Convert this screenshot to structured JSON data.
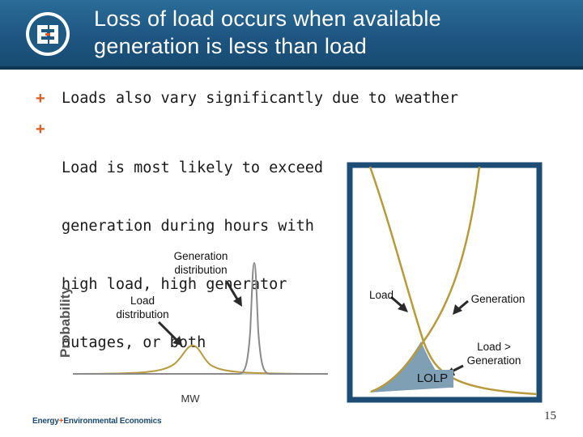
{
  "header": {
    "title_line1": "Loss of load occurs when available",
    "title_line2": "generation is less than load",
    "logo_icon": "e3-logo"
  },
  "bullets": [
    "Loads also vary significantly due to weather",
    [
      "Load is most likely to exceed",
      "generation during hours with",
      "high load, high generator",
      "outages, or both"
    ]
  ],
  "left_chart": {
    "ylabel": "Probability",
    "xlabel": "MW",
    "generation_label_1": "Generation",
    "generation_label_2": "distribution",
    "load_label_1": "Load",
    "load_label_2": "distribution"
  },
  "right_chart": {
    "load_label": "Load",
    "generation_label": "Generation",
    "overlap_label_1": "Load >",
    "overlap_label_2": "Generation",
    "lolp_label": "LOLP"
  },
  "footer": {
    "company_part1": "Energy",
    "company_plus": "+",
    "company_part2": "Environmental Economics",
    "page_number": "15"
  },
  "colors": {
    "header_bg": "#1f5a82",
    "bullet_plus": "#e05a1c",
    "curve": "#b89a3c",
    "lolp_fill": "#7f9fb5",
    "frame": "#1d4d75"
  }
}
